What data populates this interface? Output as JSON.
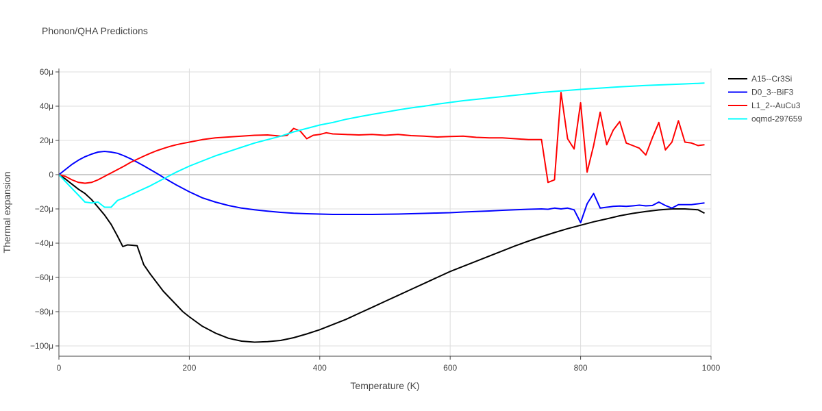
{
  "chart_data": {
    "type": "line",
    "title": "Phonon/QHA Predictions",
    "xlabel": "Temperature (K)",
    "ylabel": "Thermal expansion",
    "xlim": [
      0,
      1000
    ],
    "ylim": [
      -106,
      62
    ],
    "x_ticks": [
      0,
      200,
      400,
      600,
      800,
      1000
    ],
    "x_tick_labels": [
      "0",
      "200",
      "400",
      "600",
      "800",
      "1000"
    ],
    "y_ticks": [
      60,
      40,
      20,
      0,
      -20,
      -40,
      -60,
      -80,
      -100
    ],
    "y_tick_labels": [
      "60μ",
      "40μ",
      "20μ",
      "0",
      "−20μ",
      "−40μ",
      "−60μ",
      "−80μ",
      "−100μ"
    ],
    "grid": true,
    "legend_position": "top-right",
    "series": [
      {
        "name": "A15--Cr3Si",
        "color": "#000000",
        "x": [
          0,
          10,
          20,
          30,
          40,
          50,
          60,
          70,
          80,
          90,
          98,
          105,
          112,
          120,
          130,
          140,
          150,
          160,
          170,
          180,
          190,
          200,
          220,
          240,
          260,
          280,
          300,
          320,
          340,
          360,
          380,
          400,
          420,
          440,
          460,
          480,
          500,
          520,
          540,
          560,
          580,
          600,
          620,
          640,
          660,
          680,
          700,
          720,
          740,
          760,
          780,
          800,
          820,
          840,
          860,
          880,
          900,
          920,
          940,
          960,
          980,
          990
        ],
        "y": [
          0,
          -2.5,
          -5.5,
          -8.5,
          -11,
          -14.5,
          -19,
          -23.5,
          -29,
          -36,
          -42,
          -41,
          -41.2,
          -41.5,
          -52.5,
          -58,
          -63,
          -68,
          -72,
          -76,
          -80,
          -83,
          -88.5,
          -92.5,
          -95.5,
          -97.2,
          -97.8,
          -97.5,
          -96.8,
          -95.2,
          -93,
          -90.5,
          -87.5,
          -84.5,
          -81,
          -77.5,
          -74,
          -70.5,
          -67,
          -63.5,
          -60,
          -56.5,
          -53.5,
          -50.5,
          -47.5,
          -44.5,
          -41.5,
          -38.8,
          -36.2,
          -33.8,
          -31.5,
          -29.5,
          -27.5,
          -25.8,
          -24,
          -22.6,
          -21.5,
          -20.6,
          -20,
          -20,
          -20.5,
          -22.5
        ]
      },
      {
        "name": "D0_3--BiF3",
        "color": "#0000ff",
        "x": [
          0,
          10,
          20,
          30,
          40,
          50,
          60,
          70,
          80,
          90,
          100,
          110,
          120,
          130,
          140,
          150,
          160,
          170,
          180,
          190,
          200,
          220,
          240,
          260,
          280,
          300,
          320,
          340,
          360,
          380,
          400,
          420,
          440,
          460,
          480,
          500,
          520,
          540,
          560,
          580,
          600,
          620,
          640,
          660,
          680,
          700,
          720,
          740,
          750,
          760,
          770,
          780,
          790,
          800,
          810,
          820,
          830,
          840,
          850,
          860,
          870,
          880,
          890,
          900,
          910,
          920,
          930,
          940,
          950,
          960,
          970,
          980,
          990
        ],
        "y": [
          0,
          3,
          6,
          8.5,
          10.5,
          12,
          13.2,
          13.6,
          13.2,
          12.5,
          11,
          9.3,
          7.3,
          5.2,
          3,
          0.8,
          -1.5,
          -3.8,
          -6,
          -8,
          -10,
          -13.5,
          -16,
          -18,
          -19.5,
          -20.5,
          -21.3,
          -22,
          -22.5,
          -22.8,
          -23,
          -23.2,
          -23.2,
          -23.2,
          -23.2,
          -23.1,
          -23,
          -22.8,
          -22.6,
          -22.4,
          -22.2,
          -21.8,
          -21.5,
          -21.2,
          -20.8,
          -20.5,
          -20.2,
          -20,
          -20.2,
          -19.5,
          -20,
          -19.5,
          -20.5,
          -28,
          -17,
          -11,
          -19.5,
          -19,
          -18.5,
          -18.3,
          -18.5,
          -18.2,
          -17.8,
          -18.2,
          -18,
          -16,
          -18,
          -19.5,
          -17.5,
          -17.5,
          -17.5,
          -17,
          -16.5
        ]
      },
      {
        "name": "L1_2--AuCu3",
        "color": "#ff0000",
        "x": [
          0,
          10,
          20,
          30,
          40,
          50,
          60,
          70,
          80,
          90,
          100,
          110,
          120,
          130,
          140,
          150,
          160,
          170,
          180,
          190,
          200,
          220,
          240,
          260,
          280,
          300,
          320,
          340,
          350,
          360,
          370,
          380,
          390,
          400,
          410,
          420,
          440,
          460,
          480,
          500,
          520,
          540,
          560,
          580,
          600,
          620,
          640,
          660,
          680,
          700,
          720,
          740,
          750,
          760,
          770,
          780,
          790,
          800,
          810,
          820,
          830,
          840,
          850,
          860,
          870,
          880,
          890,
          900,
          910,
          920,
          930,
          940,
          950,
          960,
          970,
          980,
          990
        ],
        "y": [
          0,
          -1,
          -3,
          -4.5,
          -5,
          -4.5,
          -3,
          -1,
          1,
          3,
          5,
          7.2,
          9,
          10.8,
          12.5,
          14,
          15.3,
          16.5,
          17.5,
          18.3,
          19,
          20.5,
          21.5,
          22,
          22.5,
          23,
          23.2,
          22.5,
          23,
          27,
          25.5,
          21,
          23,
          23.5,
          24.5,
          23.8,
          23.5,
          23.2,
          23.5,
          23,
          23.5,
          22.8,
          22.5,
          22,
          22.3,
          22.5,
          21.8,
          21.5,
          21.5,
          21,
          20.5,
          20.5,
          -4.5,
          -3,
          48,
          21,
          15,
          42,
          1.5,
          17,
          36.5,
          17.5,
          26,
          31,
          18.5,
          17,
          15.5,
          11.5,
          21.5,
          30.5,
          14.5,
          19,
          31.5,
          19,
          18.5,
          17,
          17.5
        ]
      },
      {
        "name": "oqmd-297659",
        "color": "#00ffff",
        "x": [
          0,
          10,
          20,
          30,
          40,
          50,
          60,
          70,
          80,
          90,
          100,
          120,
          140,
          160,
          180,
          200,
          220,
          240,
          260,
          280,
          300,
          320,
          340,
          360,
          380,
          400,
          420,
          440,
          460,
          480,
          500,
          520,
          540,
          560,
          580,
          600,
          620,
          640,
          660,
          680,
          700,
          720,
          740,
          760,
          780,
          800,
          820,
          840,
          860,
          880,
          900,
          920,
          940,
          960,
          980,
          990
        ],
        "y": [
          0,
          -4,
          -8,
          -12,
          -16,
          -16.5,
          -16,
          -19,
          -19,
          -15,
          -13.5,
          -10,
          -6.5,
          -2.5,
          1.5,
          5,
          8,
          11,
          13.5,
          16,
          18.5,
          20.5,
          22.5,
          25,
          27,
          29,
          30.5,
          32.3,
          33.8,
          35.2,
          36.5,
          37.8,
          39,
          40,
          41.2,
          42.2,
          43.2,
          44,
          44.8,
          45.6,
          46.4,
          47.2,
          48,
          48.6,
          49.2,
          49.8,
          50.3,
          50.8,
          51.3,
          51.7,
          52.1,
          52.4,
          52.7,
          53,
          53.3,
          53.5
        ]
      }
    ]
  }
}
